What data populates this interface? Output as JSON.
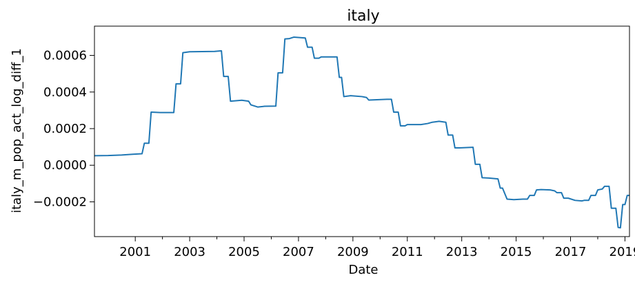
{
  "chart_data": {
    "type": "line",
    "title": "italy",
    "xlabel": "Date",
    "ylabel": "italy_m_pop_act_log_diff_1",
    "xlim": [
      "2000-01",
      "2019-09"
    ],
    "ylim": [
      -0.00039,
      0.00076
    ],
    "x_ticks": [
      "2001",
      "2003",
      "2005",
      "2007",
      "2009",
      "2011",
      "2013",
      "2015",
      "2017",
      "2019"
    ],
    "y_ticks": [
      {
        "value": -0.0002,
        "label": "−0.0002"
      },
      {
        "value": 0.0,
        "label": "0.0000"
      },
      {
        "value": 0.0002,
        "label": "0.0002"
      },
      {
        "value": 0.0004,
        "label": "0.0004"
      },
      {
        "value": 0.0006,
        "label": "0.0006"
      }
    ],
    "grid": false,
    "series": [
      {
        "color": "#1f77b4",
        "points": [
          [
            "2000-01",
            5.2e-05
          ],
          [
            "2000-07",
            5.3e-05
          ],
          [
            "2001-01",
            5.6e-05
          ],
          [
            "2001-06",
            6e-05
          ],
          [
            "2001-10",
            6.3e-05
          ],
          [
            "2001-11",
            0.00012
          ],
          [
            "2002-01",
            0.00012
          ],
          [
            "2002-02",
            0.00029
          ],
          [
            "2002-06",
            0.000288
          ],
          [
            "2002-12",
            0.000288
          ],
          [
            "2003-01",
            0.000445
          ],
          [
            "2003-03",
            0.000445
          ],
          [
            "2003-04",
            0.000615
          ],
          [
            "2003-07",
            0.00062
          ],
          [
            "2004-06",
            0.000622
          ],
          [
            "2004-09",
            0.000625
          ],
          [
            "2004-10",
            0.000485
          ],
          [
            "2004-12",
            0.000485
          ],
          [
            "2005-01",
            0.00035
          ],
          [
            "2005-06",
            0.000355
          ],
          [
            "2005-09",
            0.00035
          ],
          [
            "2005-10",
            0.00033
          ],
          [
            "2006-01",
            0.000318
          ],
          [
            "2006-04",
            0.000322
          ],
          [
            "2006-09",
            0.000323
          ],
          [
            "2006-10",
            0.000505
          ],
          [
            "2006-12",
            0.000505
          ],
          [
            "2007-01",
            0.00069
          ],
          [
            "2007-03",
            0.000692
          ],
          [
            "2007-05",
            0.0007
          ],
          [
            "2007-10",
            0.000695
          ],
          [
            "2007-11",
            0.000645
          ],
          [
            "2008-01",
            0.000645
          ],
          [
            "2008-02",
            0.000585
          ],
          [
            "2008-04",
            0.000585
          ],
          [
            "2008-05",
            0.000592
          ],
          [
            "2008-12",
            0.000592
          ],
          [
            "2009-01",
            0.00048
          ],
          [
            "2009-02",
            0.00048
          ],
          [
            "2009-03",
            0.000375
          ],
          [
            "2009-06",
            0.00038
          ],
          [
            "2009-11",
            0.000375
          ],
          [
            "2010-01",
            0.00037
          ],
          [
            "2010-02",
            0.000356
          ],
          [
            "2010-10",
            0.00036
          ],
          [
            "2010-12",
            0.00036
          ],
          [
            "2011-01",
            0.00029
          ],
          [
            "2011-03",
            0.00029
          ],
          [
            "2011-04",
            0.000215
          ],
          [
            "2011-06",
            0.000215
          ],
          [
            "2011-07",
            0.000222
          ],
          [
            "2012-01",
            0.000222
          ],
          [
            "2012-04",
            0.000228
          ],
          [
            "2012-06",
            0.000235
          ],
          [
            "2012-09",
            0.00024
          ],
          [
            "2012-12",
            0.000235
          ],
          [
            "2013-01",
            0.000165
          ],
          [
            "2013-03",
            0.000165
          ],
          [
            "2013-04",
            9.5e-05
          ],
          [
            "2013-06",
            9.5e-05
          ],
          [
            "2013-12",
            9.8e-05
          ],
          [
            "2014-01",
            5e-06
          ],
          [
            "2014-03",
            5e-06
          ],
          [
            "2014-04",
            -6.8e-05
          ],
          [
            "2014-07",
            -7e-05
          ],
          [
            "2014-11",
            -7.5e-05
          ],
          [
            "2014-12",
            -0.000125
          ],
          [
            "2015-01",
            -0.000125
          ],
          [
            "2015-03",
            -0.000185
          ],
          [
            "2015-06",
            -0.000188
          ],
          [
            "2015-10",
            -0.000185
          ],
          [
            "2015-12",
            -0.000185
          ],
          [
            "2016-01",
            -0.000165
          ],
          [
            "2016-03",
            -0.000165
          ],
          [
            "2016-04",
            -0.000135
          ],
          [
            "2016-06",
            -0.000133
          ],
          [
            "2016-10",
            -0.000135
          ],
          [
            "2016-12",
            -0.00014
          ],
          [
            "2017-01",
            -0.00015
          ],
          [
            "2017-03",
            -0.00015
          ],
          [
            "2017-04",
            -0.00018
          ],
          [
            "2017-06",
            -0.00018
          ],
          [
            "2017-09",
            -0.000192
          ],
          [
            "2017-12",
            -0.000195
          ],
          [
            "2018-01",
            -0.000192
          ],
          [
            "2018-03",
            -0.000192
          ],
          [
            "2018-04",
            -0.000165
          ],
          [
            "2018-06",
            -0.000165
          ],
          [
            "2018-07",
            -0.000135
          ],
          [
            "2018-09",
            -0.00013
          ],
          [
            "2018-10",
            -0.000115
          ],
          [
            "2018-12",
            -0.000115
          ],
          [
            "2019-01",
            -0.000235
          ],
          [
            "2019-03",
            -0.000235
          ],
          [
            "2019-04",
            -0.00034
          ],
          [
            "2019-05",
            -0.000342
          ],
          [
            "2019-06",
            -0.000215
          ],
          [
            "2019-07",
            -0.000215
          ],
          [
            "2019-08",
            -0.000165
          ],
          [
            "2019-09",
            -0.000165
          ]
        ]
      }
    ]
  }
}
